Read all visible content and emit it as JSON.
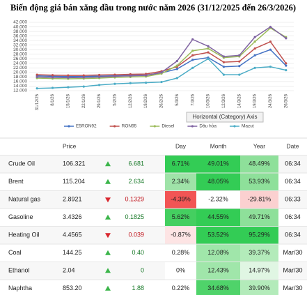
{
  "chart_data": {
    "type": "line",
    "title": "Biến động giá bán xăng dầu trong nước năm 2026 (31/12/2025 đến 26/3/2026)",
    "x_label": "Horizontal (Category) Axis",
    "categories": [
      "31/12/25",
      "8/1/26",
      "15/1/26",
      "22/1/26",
      "29/1/26",
      "5/2/26",
      "12/2/26",
      "19/2/26",
      "26/2/26",
      "5/3/26",
      "7/3/26",
      "10/3/26",
      "12/3/26",
      "14/3/26",
      "19/3/26",
      "24/3/26",
      "26/3/26"
    ],
    "series": [
      {
        "name": "E5RON92",
        "color": "#4472c4",
        "values": [
          18500,
          18300,
          18200,
          18200,
          18400,
          18500,
          18700,
          18800,
          19800,
          21500,
          25500,
          26500,
          22500,
          22800,
          27500,
          30000,
          23000
        ]
      },
      {
        "name": "RON95",
        "color": "#c0504d",
        "values": [
          19000,
          18800,
          18700,
          18700,
          18900,
          19000,
          19200,
          19300,
          20500,
          22500,
          27500,
          28800,
          24500,
          24800,
          30500,
          33500,
          24000
        ]
      },
      {
        "name": "Diesel",
        "color": "#9bbb59",
        "values": [
          17500,
          17300,
          17200,
          17300,
          17500,
          17800,
          18000,
          18200,
          19500,
          23000,
          29500,
          30500,
          26500,
          27000,
          33500,
          39500,
          35500
        ]
      },
      {
        "name": "Dầu hỏa",
        "color": "#8064a2",
        "values": [
          18000,
          17800,
          17700,
          17800,
          18000,
          18300,
          18500,
          18700,
          20000,
          25000,
          34500,
          31500,
          27000,
          27500,
          35500,
          40000,
          35000
        ]
      },
      {
        "name": "Mazut",
        "color": "#4bacc6",
        "values": [
          13000,
          13200,
          13500,
          13800,
          14500,
          15000,
          15300,
          15500,
          15800,
          17500,
          22000,
          26000,
          19000,
          19000,
          22000,
          22500,
          21000
        ]
      }
    ],
    "ylim": [
      12000,
      42000
    ],
    "yticks": [
      {
        "value": 12000,
        "label": "12.000"
      },
      {
        "value": 14000,
        "label": "14.000"
      },
      {
        "value": 16000,
        "label": "16.000"
      },
      {
        "value": 18000,
        "label": "18.000"
      },
      {
        "value": 20000,
        "label": "20.000"
      },
      {
        "value": 22000,
        "label": "22.000"
      },
      {
        "value": 24000,
        "label": "24.000"
      },
      {
        "value": 26000,
        "label": "26.000"
      },
      {
        "value": 28000,
        "label": "28.000"
      },
      {
        "value": 30000,
        "label": "30.000"
      },
      {
        "value": 32000,
        "label": "32.000"
      },
      {
        "value": 34000,
        "label": "34.000"
      },
      {
        "value": 36000,
        "label": "36.000"
      },
      {
        "value": 38000,
        "label": "38.000"
      },
      {
        "value": 40000,
        "label": "40.000"
      },
      {
        "value": 42000,
        "label": "42.000"
      }
    ],
    "grid": true
  },
  "table": {
    "header": [
      "Price",
      "Day",
      "Month",
      "Year",
      "Date"
    ],
    "rows": [
      [
        "Crude Oil",
        "106.321",
        "6.681",
        "6.71%",
        "49.01%",
        "48.49%",
        "06:34"
      ],
      [
        "Brent",
        "115.204",
        "2.634",
        "2.34%",
        "48.05%",
        "53.93%",
        "06:34"
      ],
      [
        "Natural gas",
        "2.8921",
        "0.1329",
        "-4.39%",
        "-2.32%",
        "-29.81%",
        "06:33"
      ],
      [
        "Gasoline",
        "3.4326",
        "0.1825",
        "5.62%",
        "44.55%",
        "49.71%",
        "06:34"
      ],
      [
        "Heating Oil",
        "4.4565",
        "0.039",
        "-0.87%",
        "53.52%",
        "95.29%",
        "06:34"
      ],
      [
        "Coal",
        "144.25",
        "0.40",
        "0.28%",
        "12.08%",
        "39.37%",
        "Mar/30"
      ],
      [
        "Ethanol",
        "2.04",
        "0",
        "0%",
        "12.43%",
        "14.97%",
        "Mar/30"
      ],
      [
        "Naphtha",
        "853.20",
        "1.88",
        "0.22%",
        "34.68%",
        "39.90%",
        "Mar/30"
      ]
    ]
  }
}
